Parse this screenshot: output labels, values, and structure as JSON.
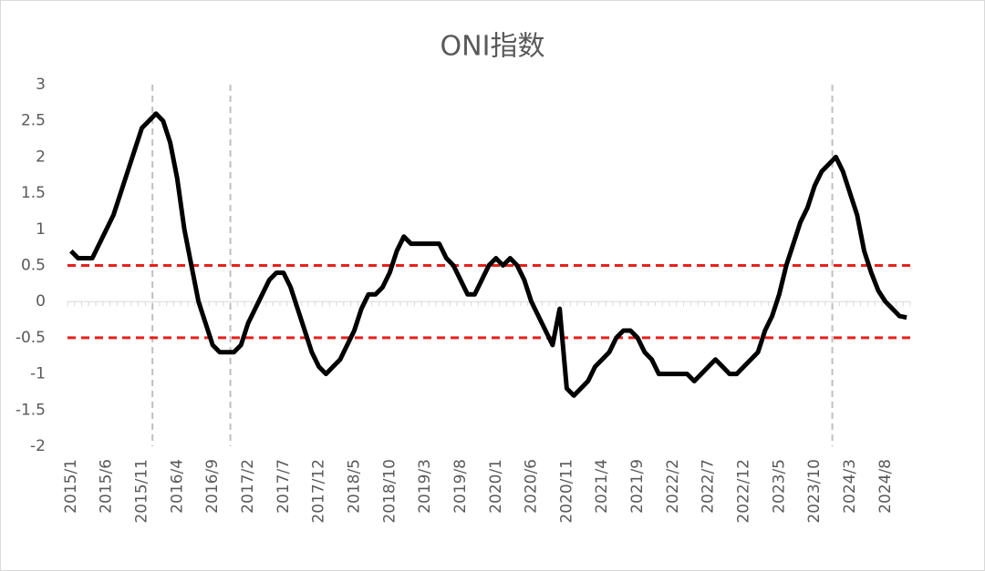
{
  "chart_data": {
    "type": "line",
    "title": "ONI指数",
    "categories": [
      "2015/1",
      null,
      null,
      null,
      null,
      "2015/6",
      null,
      null,
      null,
      null,
      "2015/11",
      null,
      null,
      null,
      null,
      "2016/4",
      null,
      null,
      null,
      null,
      "2016/9",
      null,
      null,
      null,
      null,
      "2017/2",
      null,
      null,
      null,
      null,
      "2017/7",
      null,
      null,
      null,
      null,
      "2017/12",
      null,
      null,
      null,
      null,
      "2018/5",
      null,
      null,
      null,
      null,
      "2018/10",
      null,
      null,
      null,
      null,
      "2019/3",
      null,
      null,
      null,
      null,
      "2019/8",
      null,
      null,
      null,
      null,
      "2020/1",
      null,
      null,
      null,
      null,
      "2020/6",
      null,
      null,
      null,
      null,
      "2020/11",
      null,
      null,
      null,
      null,
      "2021/4",
      null,
      null,
      null,
      null,
      "2021/9",
      null,
      null,
      null,
      null,
      "2022/2",
      null,
      null,
      null,
      null,
      "2022/7",
      null,
      null,
      null,
      null,
      "2022/12",
      null,
      null,
      null,
      null,
      "2023/5",
      null,
      null,
      null,
      null,
      "2023/10",
      null,
      null,
      null,
      null,
      "2024/3",
      null,
      null,
      null,
      null,
      "2024/8",
      null,
      null,
      null
    ],
    "series": [
      {
        "color": "#000000",
        "values": [
          0.7,
          0.6,
          0.6,
          0.6,
          0.8,
          1.0,
          1.2,
          1.5,
          1.8,
          2.1,
          2.4,
          2.5,
          2.6,
          2.5,
          2.2,
          1.7,
          1.0,
          0.5,
          0.0,
          -0.3,
          -0.6,
          -0.7,
          -0.7,
          -0.7,
          -0.6,
          -0.3,
          -0.1,
          0.1,
          0.3,
          0.4,
          0.4,
          0.2,
          -0.1,
          -0.4,
          -0.7,
          -0.9,
          -1.0,
          -0.9,
          -0.8,
          -0.6,
          -0.4,
          -0.1,
          0.1,
          0.1,
          0.2,
          0.4,
          0.7,
          0.9,
          0.8,
          0.8,
          0.8,
          0.8,
          0.8,
          0.6,
          0.5,
          0.3,
          0.1,
          0.1,
          0.3,
          0.5,
          0.6,
          0.5,
          0.6,
          0.5,
          0.3,
          0.0,
          -0.2,
          -0.4,
          -0.6,
          -0.1,
          -1.2,
          -1.3,
          -1.2,
          -1.1,
          -0.9,
          -0.8,
          -0.7,
          -0.5,
          -0.4,
          -0.4,
          -0.5,
          -0.7,
          -0.8,
          -1.0,
          -1.0,
          -1.0,
          -1.0,
          -1.0,
          -1.1,
          -1.0,
          -0.9,
          -0.8,
          -0.9,
          -1.0,
          -1.0,
          -0.9,
          -0.8,
          -0.7,
          -0.4,
          -0.2,
          0.1,
          0.5,
          0.8,
          1.1,
          1.3,
          1.6,
          1.8,
          1.9,
          2.0,
          1.8,
          1.5,
          1.2,
          0.7,
          0.4,
          0.15,
          0.0,
          -0.1,
          -0.2,
          -0.22
        ]
      }
    ],
    "ylim": [
      -2,
      3
    ],
    "yticks": [
      3,
      2.5,
      2,
      1.5,
      1,
      0.5,
      0,
      -0.5,
      -1,
      -1.5,
      -2
    ],
    "hlines": [
      0.5,
      -0.5
    ],
    "hline_color": "#e8201c",
    "vlines": [
      11.5,
      22.5,
      107.5
    ],
    "vline_color": "#bfbfbf"
  }
}
